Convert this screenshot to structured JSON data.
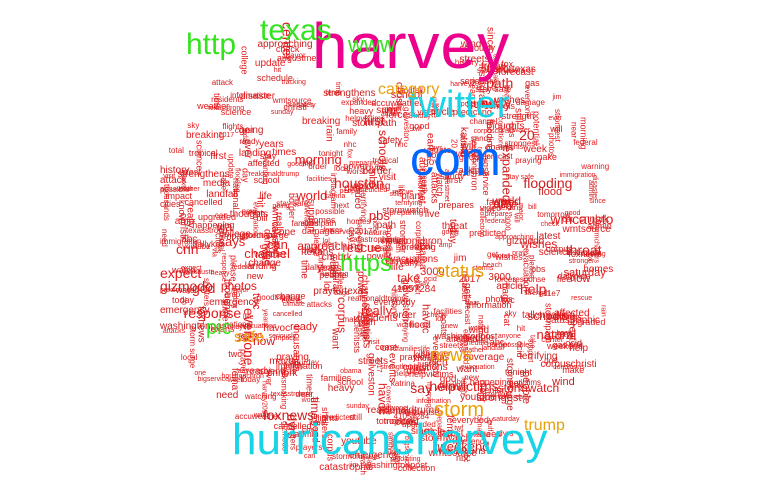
{
  "colors": {
    "background": "#ffffff",
    "magenta": "#ec008c",
    "blue": "#0066ff",
    "cyan": "#19d3e6",
    "green": "#35e21f",
    "orange": "#e8a00c",
    "red": "#e31a1c",
    "pink": "#ff6ec7"
  },
  "words": {
    "harvey": "harvey",
    "hurricaneharvey": "hurricaneharvey",
    "com": "com",
    "twitter": "twitter",
    "texas": "texas",
    "http": "http",
    "https": "https",
    "www": "www",
    "category": "category",
    "status": "status",
    "storm": "storm",
    "news": "news",
    "trump": "trump",
    "pic": "pic",
    "safe": "safe",
    "houston": "houston",
    "cnn": "cnn",
    "via": "via",
    "gov": "gov",
    "people": "people",
    "flooding": "flooding",
    "landfall": "landfall",
    "rain": "rain",
    "hit": "hit",
    "help": "help",
    "stay": "stay",
    "victims": "victims",
    "texans": "texans",
    "major": "major",
    "youtube": "youtube",
    "harvey2017": "harvey2017",
    "watch": "watch",
    "corpuschristi": "corpuschristi",
    "stormwatch": "stormwatch",
    "update": "update",
    "evacuations": "evacuations",
    "approaching": "approaching",
    "strengthens": "strengthens",
    "katrina": "katrina",
    "foxnews": "foxnews",
    "galveston": "galveston",
    "everybody": "everybody",
    "possible": "possible",
    "christi": "christi",
    "obama": "obama",
    "attack": "attack",
    "tomorrow": "tomorrow",
    "says": "says",
    "predicting": "predicting",
    "information": "information",
    "evacuation": "evacuation",
    "prayers": "prayers",
    "immigration": "immigration",
    "weather": "weather",
    "storms": "storms",
    "climate": "climate",
    "preparing": "preparing",
    "coast": "coast",
    "gulf": "gulf",
    "sky": "sky",
    "make": "make",
    "say": "say",
    "take": "take",
    "can": "can",
    "need": "need",
    "dallykos": "dallykos",
    "article": "article",
    "forces": "forces",
    "everyone": "everyone",
    "please": "please",
    "instagram": "instagram",
    "disaster": "disaster",
    "path": "path",
    "next": "next",
    "world": "world",
    "national": "national",
    "thousands": "thousands",
    "expanded": "expanded",
    "admin": "admin",
    "watching": "watching",
    "years": "years",
    "change": "change",
    "anyone": "anyone",
    "wishes": "wishes",
    "thoughts": "thoughts",
    "visit": "visit",
    "families": "families",
    "fema": "fema",
    "talksmaking": "talksmaking",
    "wmcausto": "wmcausto",
    "washingtonpost": "washingtonpost",
    "strength": "strength",
    "video": "video",
    "breaking": "breaking",
    "havoc": "havoc",
    "surge": "surge",
    "schedule": "schedule",
    "since": "since",
    "friday": "friday",
    "wanting": "wanting",
    "safety": "safety",
    "life": "life",
    "rescue": "rescue",
    "attacks": "attacks",
    "lol": "lol",
    "fox": "fox",
    "times": "times",
    "support": "support",
    "coverage": "coverage",
    "latest": "latest",
    "tropical": "tropical",
    "stronger": "stronger",
    "realdonaldtrump": "realdonaldtrump",
    "dear": "dear",
    "heavy": "heavy",
    "early": "early",
    "wind": "wind",
    "alert": "alert",
    "cancelled": "cancelled",
    "praying": "praying",
    "going": "going",
    "first": "first",
    "college": "college",
    "terrifying": "terrifying",
    "center": "center",
    "school": "school",
    "affected": "affected",
    "power": "power",
    "stay_safe": "stay safe",
    "god": "god",
    "goodtrip": "goodtrip",
    "gizmodo": "gizmodo",
    "collection": "collection",
    "landing": "landing",
    "predicted": "predicted",
    "warning": "warning",
    "ready": "ready",
    "jim": "jim",
    "catastrophic": "catastrophic",
    "upgraded": "upgraded",
    "really": "really",
    "conditions": "conditions",
    "mayor": "mayor",
    "one": "one",
    "near": "near",
    "worst": "worst",
    "water": "water",
    "week": "week",
    "still": "still",
    "emergency": "emergency",
    "prayfortexas": "prayfortexas",
    "houstonchron": "houstonchron",
    "corpus": "corpus",
    "bigservice": "bigservice",
    "pray": "pray",
    "tonight": "tonight",
    "impact": "impact",
    "flood": "flood",
    "sandy": "sandy",
    "accuweather": "accuweather",
    "morning": "morning",
    "happening": "happening",
    "bags": "bags",
    "strongest": "strongest",
    "ocid": "ocid",
    "scientists": "scientists",
    "threat": "threat",
    "homes": "homes",
    "storm_surge": "storm surge",
    "dyrs": "dyrs",
    "twf": "twf",
    "n11e7": "11e7",
    "n41057284": "41057284",
    "n2017": "2017",
    "n20": "20",
    "n3000": "3000",
    "channel": "channel",
    "wmtsource": "wmtsource",
    "federal": "federal",
    "facilities": "facilities",
    "response": "response",
    "augustmet": "augustmet",
    "potential": "potential",
    "natural": "natural",
    "plan": "plan",
    "expect": "expect",
    "tracking": "tracking",
    "weekend": "weekend",
    "pbs": "pbs",
    "forecast": "forecast",
    "science": "science",
    "history": "history",
    "residents": "residents",
    "schools": "schools",
    "cities": "cities",
    "shelters": "shelters",
    "twc": "twc",
    "check": "check",
    "flights": "flights",
    "nbc": "nbc",
    "nhc": "nhc",
    "killed": "killed",
    "photos": "photos",
    "boats": "boats",
    "storm_chasers": "stormchasers",
    "beach": "beach",
    "damage": "damage",
    "help_victims": "helpvictims",
    "media": "media",
    "seriously": "seriously",
    "today": "today",
    "local": "local",
    "flee": "flee",
    "order": "order",
    "total": "total",
    "streets": "streets",
    "events": "events",
    "prepares": "prepares",
    "family": "family",
    "live": "live",
    "ever": "ever",
    "cnnbrk": "cnnbrk",
    "abc": "abc",
    "cat": "cat",
    "sunday": "sunday",
    "saturday": "saturday",
    "texasstrong": "texasstrong",
    "border": "border",
    "gas": "gas",
    "bill": "bill",
    "good": "good",
    "storm_path": "stormpath",
    "want": "want",
    "day": "day",
    "know": "know",
    "time": "time",
    "get": "get",
    "like": "like",
    "new": "new",
    "amp": "amp",
    "just": "just",
    "now": "now",
    "will": "will"
  }
}
